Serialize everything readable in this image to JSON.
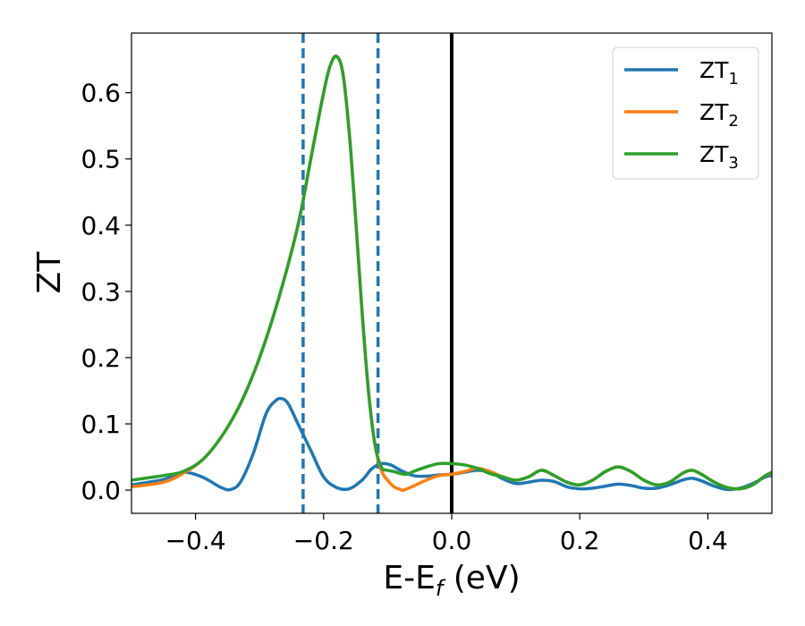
{
  "chart_data": {
    "type": "line",
    "xlabel": {
      "main": "E-E",
      "sub": "f",
      "tail": " (eV)"
    },
    "ylabel": "ZT",
    "xlim": [
      -0.5,
      0.5
    ],
    "ylim": [
      -0.035,
      0.69
    ],
    "xticks": [
      -0.4,
      -0.2,
      0.0,
      0.2,
      0.4
    ],
    "xtick_labels": [
      "−0.4",
      "−0.2",
      "0.0",
      "0.2",
      "0.4"
    ],
    "yticks": [
      0.0,
      0.1,
      0.2,
      0.3,
      0.4,
      0.5,
      0.6
    ],
    "ytick_labels": [
      "0.0",
      "0.1",
      "0.2",
      "0.3",
      "0.4",
      "0.5",
      "0.6"
    ],
    "grid": false,
    "legend_position": "top-right",
    "vlines": [
      {
        "x": -0.232,
        "style": "dashed",
        "color": "#1f77b4"
      },
      {
        "x": -0.115,
        "style": "dashed",
        "color": "#1f77b4"
      },
      {
        "x": 0.0,
        "style": "solid",
        "color": "#000000"
      }
    ],
    "series": [
      {
        "name": "ZT",
        "name_sub": "1",
        "color": "#1f77b4",
        "x": [
          -0.5,
          -0.45,
          -0.42,
          -0.39,
          -0.36,
          -0.345,
          -0.33,
          -0.31,
          -0.29,
          -0.275,
          -0.265,
          -0.255,
          -0.24,
          -0.22,
          -0.2,
          -0.18,
          -0.16,
          -0.14,
          -0.125,
          -0.11,
          -0.095,
          -0.08,
          -0.06,
          -0.04,
          -0.02,
          0.0,
          0.02,
          0.04,
          0.06,
          0.08,
          0.1,
          0.12,
          0.14,
          0.16,
          0.18,
          0.2,
          0.22,
          0.24,
          0.26,
          0.28,
          0.3,
          0.32,
          0.34,
          0.36,
          0.375,
          0.39,
          0.41,
          0.43,
          0.45,
          0.47,
          0.49,
          0.5
        ],
        "y": [
          0.008,
          0.016,
          0.027,
          0.02,
          0.004,
          0.001,
          0.012,
          0.055,
          0.115,
          0.135,
          0.138,
          0.13,
          0.1,
          0.06,
          0.02,
          0.004,
          0.002,
          0.015,
          0.032,
          0.04,
          0.038,
          0.03,
          0.022,
          0.021,
          0.023,
          0.024,
          0.027,
          0.03,
          0.027,
          0.017,
          0.01,
          0.012,
          0.015,
          0.013,
          0.005,
          0.002,
          0.003,
          0.006,
          0.009,
          0.007,
          0.003,
          0.003,
          0.008,
          0.015,
          0.018,
          0.014,
          0.006,
          0.001,
          0.003,
          0.01,
          0.02,
          0.022
        ]
      },
      {
        "name": "ZT",
        "name_sub": "2",
        "color": "#ff7f0e",
        "x": [
          -0.5,
          -0.45,
          -0.42,
          -0.39,
          -0.36,
          -0.33,
          -0.3,
          -0.27,
          -0.24,
          -0.22,
          -0.2,
          -0.19,
          -0.18,
          -0.17,
          -0.16,
          -0.15,
          -0.14,
          -0.13,
          -0.12,
          -0.11,
          -0.1,
          -0.09,
          -0.08,
          -0.075,
          -0.06,
          -0.04,
          -0.02,
          0.0,
          0.02,
          0.04,
          0.06,
          0.08,
          0.1,
          0.12,
          0.14,
          0.16,
          0.18,
          0.2,
          0.22,
          0.24,
          0.26,
          0.28,
          0.3,
          0.32,
          0.34,
          0.36,
          0.375,
          0.39,
          0.41,
          0.43,
          0.45,
          0.47,
          0.49,
          0.5
        ],
        "y": [
          0.005,
          0.012,
          0.025,
          0.045,
          0.08,
          0.13,
          0.2,
          0.29,
          0.4,
          0.5,
          0.6,
          0.64,
          0.655,
          0.63,
          0.54,
          0.41,
          0.27,
          0.15,
          0.07,
          0.03,
          0.015,
          0.005,
          0.001,
          0.0,
          0.006,
          0.015,
          0.022,
          0.024,
          0.028,
          0.033,
          0.028,
          0.02,
          0.015,
          0.02,
          0.03,
          0.022,
          0.012,
          0.008,
          0.015,
          0.028,
          0.035,
          0.028,
          0.015,
          0.008,
          0.012,
          0.025,
          0.03,
          0.024,
          0.012,
          0.004,
          0.002,
          0.008,
          0.022,
          0.025
        ]
      },
      {
        "name": "ZT",
        "name_sub": "3",
        "color": "#2ca02c",
        "x": [
          -0.5,
          -0.45,
          -0.42,
          -0.39,
          -0.36,
          -0.33,
          -0.3,
          -0.27,
          -0.24,
          -0.22,
          -0.2,
          -0.19,
          -0.18,
          -0.17,
          -0.16,
          -0.15,
          -0.14,
          -0.13,
          -0.12,
          -0.11,
          -0.1,
          -0.09,
          -0.08,
          -0.07,
          -0.06,
          -0.04,
          -0.02,
          0.0,
          0.02,
          0.04,
          0.06,
          0.08,
          0.1,
          0.12,
          0.14,
          0.16,
          0.18,
          0.2,
          0.22,
          0.24,
          0.26,
          0.28,
          0.3,
          0.32,
          0.34,
          0.36,
          0.375,
          0.39,
          0.41,
          0.43,
          0.45,
          0.47,
          0.49,
          0.5
        ],
        "y": [
          0.015,
          0.022,
          0.028,
          0.045,
          0.08,
          0.13,
          0.2,
          0.29,
          0.4,
          0.5,
          0.6,
          0.64,
          0.655,
          0.63,
          0.54,
          0.41,
          0.27,
          0.15,
          0.07,
          0.035,
          0.03,
          0.028,
          0.025,
          0.024,
          0.028,
          0.035,
          0.04,
          0.04,
          0.038,
          0.033,
          0.025,
          0.02,
          0.015,
          0.02,
          0.03,
          0.022,
          0.012,
          0.008,
          0.015,
          0.028,
          0.035,
          0.028,
          0.015,
          0.008,
          0.012,
          0.025,
          0.03,
          0.024,
          0.012,
          0.004,
          0.002,
          0.008,
          0.022,
          0.027
        ]
      }
    ]
  }
}
